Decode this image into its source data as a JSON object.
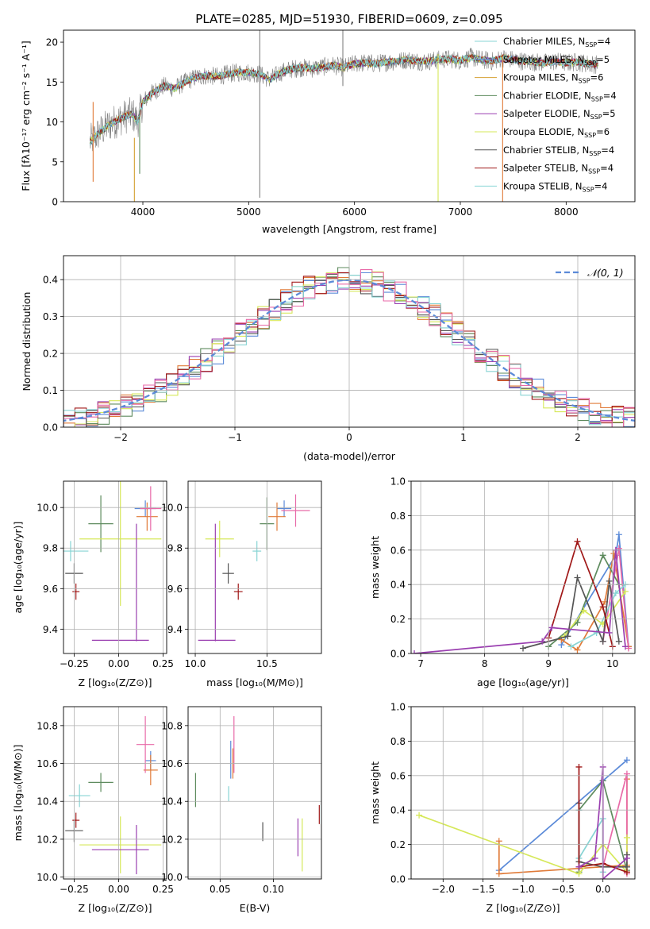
{
  "colors": {
    "chabrier_miles": "#5b8ad8",
    "salpeter_miles": "#e07b39",
    "kroupa_miles": "#d4a030",
    "chabrier_elodie": "#5e8b5e",
    "salpeter_elodie": "#9a3fb0",
    "kroupa_elodie": "#d6e85a",
    "chabrier_stelib": "#555555",
    "salpeter_stelib": "#a01818",
    "kroupa_stelib": "#87d4d4",
    "pink": "#e86aa8",
    "gray": "#808080",
    "normal_curve": "#5b8ad8"
  },
  "chart_data": [
    {
      "type": "line",
      "name": "spectrum",
      "title": "PLATE=0285, MJD=51930, FIBERID=0609, z=0.095",
      "xlabel": "wavelength [Angstrom, rest frame]",
      "ylabel": "Flux [fλ10⁻¹⁷ erg cm⁻² s⁻¹ A⁻¹]",
      "xlim": [
        3250,
        8650
      ],
      "ylim": [
        0,
        21.5
      ],
      "xticks": [
        4000,
        5000,
        6000,
        7000,
        8000
      ],
      "yticks": [
        0,
        5,
        10,
        15,
        20
      ],
      "legend_position": "right",
      "legend": [
        {
          "label": "Chabrier MILES, N",
          "sub": "SSP",
          "suffix": "=4",
          "color": "#87d4d4"
        },
        {
          "label": "Salpeter MILES, N",
          "sub": "SSP",
          "suffix": "=5",
          "color": "#5b8ad8"
        },
        {
          "label": "Kroupa MILES, N",
          "sub": "SSP",
          "suffix": "=6",
          "color": "#d4a030"
        },
        {
          "label": "Chabrier ELODIE, N",
          "sub": "SSP",
          "suffix": "=4",
          "color": "#5e8b5e"
        },
        {
          "label": "Salpeter ELODIE, N",
          "sub": "SSP",
          "suffix": "=5",
          "color": "#9a3fb0"
        },
        {
          "label": "Kroupa ELODIE, N",
          "sub": "SSP",
          "suffix": "=6",
          "color": "#d6e85a"
        },
        {
          "label": "Chabrier STELIB, N",
          "sub": "SSP",
          "suffix": "=4",
          "color": "#555555"
        },
        {
          "label": "Salpeter STELIB, N",
          "sub": "SSP",
          "suffix": "=4",
          "color": "#a01818"
        },
        {
          "label": "Kroupa STELIB, N",
          "sub": "SSP",
          "suffix": "=4",
          "color": "#87d4d4"
        }
      ],
      "continuum": [
        [
          3500,
          7.5
        ],
        [
          3600,
          8.8
        ],
        [
          3700,
          9.8
        ],
        [
          3800,
          10.5
        ],
        [
          3900,
          11.0
        ],
        [
          3950,
          10.0
        ],
        [
          4000,
          12.5
        ],
        [
          4100,
          13.8
        ],
        [
          4200,
          14.5
        ],
        [
          4300,
          14.2
        ],
        [
          4400,
          15.0
        ],
        [
          4500,
          15.6
        ],
        [
          4600,
          15.8
        ],
        [
          4700,
          15.7
        ],
        [
          4800,
          16.0
        ],
        [
          4900,
          16.2
        ],
        [
          5000,
          16.2
        ],
        [
          5100,
          16.0
        ],
        [
          5200,
          15.3
        ],
        [
          5300,
          16.2
        ],
        [
          5400,
          16.6
        ],
        [
          5500,
          16.8
        ],
        [
          5600,
          16.7
        ],
        [
          5700,
          16.9
        ],
        [
          5800,
          17.1
        ],
        [
          5900,
          16.8
        ],
        [
          6000,
          17.3
        ],
        [
          6100,
          17.4
        ],
        [
          6200,
          17.3
        ],
        [
          6300,
          17.5
        ],
        [
          6400,
          17.6
        ],
        [
          6500,
          17.8
        ],
        [
          6600,
          17.6
        ],
        [
          6700,
          17.6
        ],
        [
          6800,
          17.8
        ],
        [
          6900,
          17.9
        ],
        [
          7000,
          17.7
        ],
        [
          7100,
          18.1
        ],
        [
          7200,
          17.8
        ],
        [
          7300,
          17.6
        ],
        [
          7400,
          18.0
        ],
        [
          7500,
          17.8
        ],
        [
          7600,
          17.6
        ],
        [
          7700,
          17.5
        ],
        [
          7800,
          17.4
        ],
        [
          7900,
          17.6
        ],
        [
          8000,
          17.4
        ],
        [
          8100,
          17.5
        ],
        [
          8200,
          17.3
        ],
        [
          8300,
          17.2
        ]
      ],
      "spikes": [
        {
          "x": 3530,
          "ymin": 2.5,
          "ymax": 12.5,
          "color": "#e07b39"
        },
        {
          "x": 3920,
          "ymin": 0,
          "ymax": 8,
          "color": "#d4a030"
        },
        {
          "x": 3970,
          "ymin": 3.5,
          "ymax": 11,
          "color": "#5e8b5e"
        },
        {
          "x": 5105,
          "ymin": 0.5,
          "ymax": 21.5,
          "color": "#808080"
        },
        {
          "x": 5890,
          "ymin": 14.5,
          "ymax": 21.5,
          "color": "#808080"
        },
        {
          "x": 6790,
          "ymin": 0,
          "ymax": 18.5,
          "color": "#d6e85a"
        },
        {
          "x": 7400,
          "ymin": 0,
          "ymax": 18.0,
          "color": "#e07b39"
        }
      ]
    },
    {
      "type": "histogram",
      "name": "residuals",
      "xlabel": "(data-model)/error",
      "ylabel": "Normed distribution",
      "xlim": [
        -2.5,
        2.5
      ],
      "ylim": [
        0,
        0.465
      ],
      "xticks": [
        -2,
        -1,
        0,
        1,
        2
      ],
      "yticks": [
        0.0,
        0.1,
        0.2,
        0.3,
        0.4
      ],
      "grid": true,
      "legend": [
        {
          "label": "𝒩(0, 1)",
          "style": "dashed",
          "color": "#5b8ad8"
        }
      ],
      "legend_position": "top-right",
      "bin_width": 0.1,
      "series_colors": [
        "#5b8ad8",
        "#e07b39",
        "#5e8b5e",
        "#9a3fb0",
        "#d6e85a",
        "#555555",
        "#a01818",
        "#87d4d4",
        "#e86aa8"
      ]
    },
    {
      "type": "scatter",
      "name": "age-vs-Z",
      "xlabel": "Z [log₁₀(Z/Z⊙)]",
      "ylabel": "age  [log₁₀(age/yr)]",
      "xlim": [
        -0.31,
        0.27
      ],
      "ylim": [
        9.28,
        10.13
      ],
      "xticks": [
        -0.25,
        0.0,
        0.25
      ],
      "xticklabels": [
        "−0.25",
        "0.00",
        "0.25"
      ],
      "yticks": [
        9.4,
        9.6,
        9.8,
        10.0
      ],
      "grid": true,
      "points": [
        {
          "x": 0.15,
          "y": 9.995,
          "xerr": 0.06,
          "yerr": 0.04,
          "color": "#5b8ad8"
        },
        {
          "x": 0.16,
          "y": 9.955,
          "xerr": 0.06,
          "yerr": 0.07,
          "color": "#e07b39"
        },
        {
          "x": 0.18,
          "y": 9.995,
          "xerr": 0.06,
          "yerr": 0.11,
          "color": "#e86aa8"
        },
        {
          "x": -0.1,
          "y": 9.92,
          "xerr": 0.07,
          "yerr": 0.14,
          "color": "#5e8b5e"
        },
        {
          "x": -0.27,
          "y": 9.785,
          "xerr": 0.1,
          "yerr": 0.05,
          "color": "#87d4d4"
        },
        {
          "x": 0.01,
          "y": 9.845,
          "xerr": 0.23,
          "yerr": 0.33,
          "color": "#d6e85a"
        },
        {
          "x": -0.25,
          "y": 9.675,
          "xerr": 0.05,
          "yerr": 0.05,
          "color": "#555555"
        },
        {
          "x": -0.24,
          "y": 9.585,
          "xerr": 0.02,
          "yerr": 0.04,
          "color": "#a01818"
        },
        {
          "x": 0.01,
          "y": 9.345,
          "xerr": 0.16,
          "yerr": 0.0,
          "color": "#9a3fb0"
        },
        {
          "x": 0.1,
          "y": 9.63,
          "xerr": 0.0,
          "yerr": 0.29,
          "color": "#9a3fb0"
        }
      ]
    },
    {
      "type": "scatter",
      "name": "age-vs-mass",
      "xlabel": "mass [log₁₀(M/M⊙)]",
      "ylabel": "",
      "xlim": [
        9.95,
        10.88
      ],
      "ylim": [
        9.28,
        10.13
      ],
      "xticks": [
        10.0,
        10.5
      ],
      "xticklabels": [
        "10.0",
        "10.5"
      ],
      "yticks": [
        9.4,
        9.6,
        9.8,
        10.0
      ],
      "grid": true,
      "points": [
        {
          "x": 10.62,
          "y": 9.995,
          "xerr": 0.05,
          "yerr": 0.04,
          "color": "#5b8ad8"
        },
        {
          "x": 10.57,
          "y": 9.955,
          "xerr": 0.06,
          "yerr": 0.07,
          "color": "#e07b39"
        },
        {
          "x": 10.7,
          "y": 9.985,
          "xerr": 0.1,
          "yerr": 0.08,
          "color": "#e86aa8"
        },
        {
          "x": 10.5,
          "y": 9.92,
          "xerr": 0.05,
          "yerr": 0.13,
          "color": "#5e8b5e"
        },
        {
          "x": 10.43,
          "y": 9.785,
          "xerr": 0.03,
          "yerr": 0.05,
          "color": "#87d4d4"
        },
        {
          "x": 10.17,
          "y": 9.845,
          "xerr": 0.1,
          "yerr": 0.09,
          "color": "#d6e85a"
        },
        {
          "x": 10.23,
          "y": 9.675,
          "xerr": 0.04,
          "yerr": 0.05,
          "color": "#555555"
        },
        {
          "x": 10.3,
          "y": 9.585,
          "xerr": 0.03,
          "yerr": 0.04,
          "color": "#a01818"
        },
        {
          "x": 10.15,
          "y": 9.345,
          "xerr": 0.13,
          "yerr": 0.0,
          "color": "#9a3fb0"
        },
        {
          "x": 10.14,
          "y": 9.63,
          "xerr": 0.0,
          "yerr": 0.29,
          "color": "#9a3fb0"
        }
      ]
    },
    {
      "type": "line",
      "name": "weight-vs-age",
      "xlabel": "age  [log₁₀(age/yr)]",
      "ylabel": "mass weight",
      "xlim": [
        6.85,
        10.35
      ],
      "ylim": [
        0,
        1.0
      ],
      "xticks": [
        7,
        8,
        9,
        10
      ],
      "yticks": [
        0.0,
        0.2,
        0.4,
        0.6,
        0.8,
        1.0
      ],
      "grid": true,
      "series": [
        {
          "color": "#5b8ad8",
          "x": [
            9.2,
            10.05,
            10.1,
            10.25
          ],
          "y": [
            0.05,
            0.57,
            0.69,
            0.04
          ]
        },
        {
          "color": "#e07b39",
          "x": [
            9.2,
            9.45,
            9.88,
            10.02,
            10.25
          ],
          "y": [
            0.08,
            0.02,
            0.3,
            0.58,
            0.04
          ]
        },
        {
          "color": "#e86aa8",
          "x": [
            9.85,
            10.1,
            10.25
          ],
          "y": [
            0.07,
            0.61,
            0.03
          ]
        },
        {
          "color": "#5e8b5e",
          "x": [
            9.0,
            9.45,
            9.85,
            10.1
          ],
          "y": [
            0.04,
            0.18,
            0.57,
            0.4
          ]
        },
        {
          "color": "#87d4d4",
          "x": [
            9.35,
            9.75,
            10.05,
            10.2
          ],
          "y": [
            0.04,
            0.12,
            0.35,
            0.4
          ]
        },
        {
          "color": "#d6e85a",
          "x": [
            9.25,
            9.55,
            9.85,
            10.2
          ],
          "y": [
            0.1,
            0.25,
            0.17,
            0.36
          ]
        },
        {
          "color": "#555555",
          "x": [
            8.6,
            9.3,
            9.45,
            9.85,
            9.95,
            10.1
          ],
          "y": [
            0.03,
            0.1,
            0.44,
            0.07,
            0.42,
            0.07
          ]
        },
        {
          "color": "#a01818",
          "x": [
            9.0,
            9.45,
            9.85,
            10.0
          ],
          "y": [
            0.09,
            0.65,
            0.27,
            0.04
          ]
        },
        {
          "color": "#9a3fb0",
          "x": [
            6.9,
            8.9,
            9.05,
            9.95,
            10.05,
            10.2
          ],
          "y": [
            0.0,
            0.07,
            0.15,
            0.12,
            0.6,
            0.04
          ]
        }
      ]
    },
    {
      "type": "scatter",
      "name": "mass-vs-Z",
      "xlabel": "Z [log₁₀(Z/Z⊙)]",
      "ylabel": "mass [log₁₀(M/M⊙)]",
      "xlim": [
        -0.31,
        0.27
      ],
      "ylim": [
        9.99,
        10.9
      ],
      "xticks": [
        -0.25,
        0.0,
        0.25
      ],
      "xticklabels": [
        "−0.25",
        "0.00",
        "0.25"
      ],
      "yticks": [
        10.0,
        10.2,
        10.4,
        10.6,
        10.8
      ],
      "grid": true,
      "points": [
        {
          "x": 0.18,
          "y": 10.615,
          "xerr": 0.03,
          "yerr": 0.05,
          "color": "#5b8ad8"
        },
        {
          "x": 0.18,
          "y": 10.565,
          "xerr": 0.04,
          "yerr": 0.08,
          "color": "#e07b39"
        },
        {
          "x": 0.15,
          "y": 10.7,
          "xerr": 0.05,
          "yerr": 0.15,
          "color": "#e86aa8"
        },
        {
          "x": -0.1,
          "y": 10.5,
          "xerr": 0.07,
          "yerr": 0.05,
          "color": "#5e8b5e"
        },
        {
          "x": -0.22,
          "y": 10.43,
          "xerr": 0.06,
          "yerr": 0.06,
          "color": "#87d4d4"
        },
        {
          "x": 0.01,
          "y": 10.17,
          "xerr": 0.23,
          "yerr": 0.15,
          "color": "#d6e85a"
        },
        {
          "x": -0.25,
          "y": 10.245,
          "xerr": 0.05,
          "yerr": 0.06,
          "color": "#555555"
        },
        {
          "x": -0.24,
          "y": 10.3,
          "xerr": 0.02,
          "yerr": 0.04,
          "color": "#a01818"
        },
        {
          "x": 0.01,
          "y": 10.145,
          "xerr": 0.16,
          "yerr": 0.0,
          "color": "#9a3fb0"
        },
        {
          "x": 0.1,
          "y": 10.145,
          "xerr": 0.0,
          "yerr": 0.13,
          "color": "#9a3fb0"
        }
      ]
    },
    {
      "type": "scatter",
      "name": "mass-vs-EBV",
      "xlabel": "E(B-V)",
      "ylabel": "",
      "xlim": [
        0.02,
        0.145
      ],
      "ylim": [
        9.99,
        10.9
      ],
      "xticks": [
        0.05,
        0.1
      ],
      "xticklabels": [
        "0.05",
        "0.10"
      ],
      "yticks": [
        10.0,
        10.2,
        10.4,
        10.6,
        10.8
      ],
      "grid": true,
      "points": [
        {
          "x": 0.06,
          "y": 10.62,
          "xerr": 0,
          "yerr": 0.1,
          "color": "#5b8ad8"
        },
        {
          "x": 0.062,
          "y": 10.6,
          "xerr": 0,
          "yerr": 0.08,
          "color": "#e07b39"
        },
        {
          "x": 0.063,
          "y": 10.7,
          "xerr": 0,
          "yerr": 0.15,
          "color": "#e86aa8"
        },
        {
          "x": 0.027,
          "y": 10.46,
          "xerr": 0,
          "yerr": 0.09,
          "color": "#5e8b5e"
        },
        {
          "x": 0.058,
          "y": 10.44,
          "xerr": 0,
          "yerr": 0.04,
          "color": "#87d4d4"
        },
        {
          "x": 0.127,
          "y": 10.17,
          "xerr": 0,
          "yerr": 0.14,
          "color": "#d6e85a"
        },
        {
          "x": 0.09,
          "y": 10.24,
          "xerr": 0,
          "yerr": 0.05,
          "color": "#555555"
        },
        {
          "x": 0.143,
          "y": 10.33,
          "xerr": 0,
          "yerr": 0.05,
          "color": "#a01818"
        },
        {
          "x": 0.123,
          "y": 10.21,
          "xerr": 0,
          "yerr": 0.1,
          "color": "#9a3fb0"
        }
      ]
    },
    {
      "type": "line",
      "name": "weight-vs-Z",
      "xlabel": "Z [log₁₀(Z/Z⊙)]",
      "ylabel": "mass weight",
      "xlim": [
        -2.4,
        0.4
      ],
      "ylim": [
        0,
        1.0
      ],
      "xticks": [
        -2.0,
        -1.5,
        -1.0,
        -0.5,
        0.0
      ],
      "xticklabels": [
        "−2.0",
        "−1.5",
        "−1.0",
        "−0.5",
        "0.0"
      ],
      "yticks": [
        0.0,
        0.2,
        0.4,
        0.6,
        0.8,
        1.0
      ],
      "grid": true,
      "series": [
        {
          "color": "#5b8ad8",
          "x": [
            -1.3,
            0.0,
            0.3
          ],
          "y": [
            0.05,
            0.57,
            0.69
          ]
        },
        {
          "color": "#e07b39",
          "x": [
            -1.3,
            -1.3,
            0.3,
            0.3
          ],
          "y": [
            0.22,
            0.03,
            0.08,
            0.58
          ]
        },
        {
          "color": "#e86aa8",
          "x": [
            0.0,
            0.3,
            0.3
          ],
          "y": [
            0.07,
            0.61,
            0.03
          ]
        },
        {
          "color": "#5e8b5e",
          "x": [
            -0.3,
            -0.3,
            0.0,
            0.3
          ],
          "y": [
            0.04,
            0.4,
            0.57,
            0.05
          ]
        },
        {
          "color": "#87d4d4",
          "x": [
            -0.3,
            -0.3,
            0.0,
            0.0
          ],
          "y": [
            0.4,
            0.12,
            0.35,
            0.04
          ]
        },
        {
          "color": "#d6e85a",
          "x": [
            -2.3,
            -0.3,
            0.0,
            0.3,
            0.3
          ],
          "y": [
            0.37,
            0.03,
            0.2,
            0.04,
            0.24
          ]
        },
        {
          "color": "#555555",
          "x": [
            -0.3,
            -0.3,
            0.0,
            0.3,
            0.3
          ],
          "y": [
            0.44,
            0.1,
            0.07,
            0.07,
            0.14
          ]
        },
        {
          "color": "#a01818",
          "x": [
            -0.3,
            -0.3,
            0.0,
            0.3
          ],
          "y": [
            0.65,
            0.07,
            0.09,
            0.04
          ]
        },
        {
          "color": "#9a3fb0",
          "x": [
            -0.3,
            -0.1,
            0.0,
            0.0,
            0.3
          ],
          "y": [
            0.07,
            0.12,
            0.65,
            0.0,
            0.12
          ]
        }
      ]
    }
  ]
}
